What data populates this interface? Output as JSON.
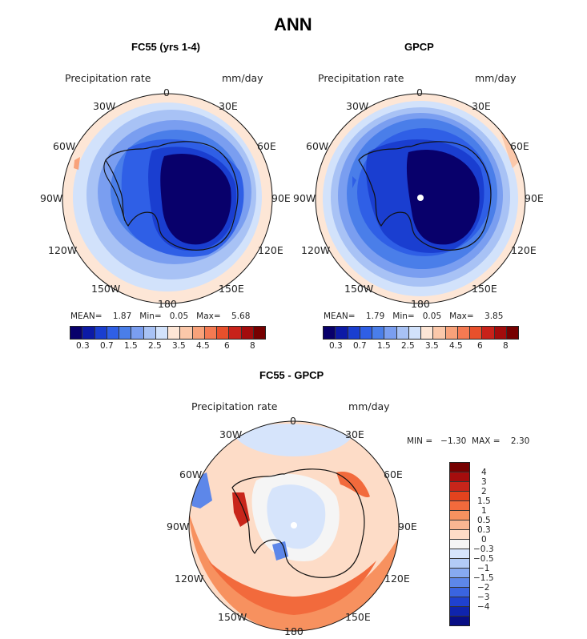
{
  "main_title": "ANN",
  "panels": [
    {
      "title": "FC55 (yrs 1-4)",
      "variable": "Precipitation rate",
      "units": "mm/day",
      "stats": {
        "mean_label": "MEAN=",
        "mean": "1.87",
        "min_label": "Min=",
        "min": "0.05",
        "max_label": "Max=",
        "max": "5.68"
      }
    },
    {
      "title": "GPCP",
      "variable": "Precipitation rate",
      "units": "mm/day",
      "stats": {
        "mean_label": "MEAN=",
        "mean": "1.79",
        "min_label": "Min=",
        "min": "0.05",
        "max_label": "Max=",
        "max": "3.85"
      }
    },
    {
      "title": "FC55 - GPCP",
      "variable": "Precipitation rate",
      "units": "mm/day",
      "stats_line": "MIN =   −1.30  MAX =    2.30"
    }
  ],
  "longitude_labels": [
    "0",
    "30E",
    "60E",
    "90E",
    "120E",
    "150E",
    "180",
    "150W",
    "120W",
    "90W",
    "60W",
    "30W"
  ],
  "colorbar_abs": {
    "colors": [
      "#08006b",
      "#0c1aa6",
      "#1a3ed0",
      "#2f5fe6",
      "#4a7ee9",
      "#7a9ef0",
      "#a8c2f5",
      "#d2e2fb",
      "#fde6d6",
      "#fbc8aa",
      "#f8a27a",
      "#f47a52",
      "#e8502c",
      "#c8221a",
      "#a30c0c",
      "#760000"
    ],
    "tick_labels": [
      "0.3",
      "0.7",
      "1.5",
      "2.5",
      "3.5",
      "4.5",
      "6",
      "8"
    ]
  },
  "colorbar_diff": {
    "colors": [
      "#760000",
      "#a50d0d",
      "#c8251a",
      "#e4431e",
      "#f26a3c",
      "#f7915f",
      "#fab692",
      "#fddcc7",
      "#f5f5f5",
      "#d6e4fb",
      "#b2cbf6",
      "#87aaf0",
      "#5d87e9",
      "#3a64e0",
      "#1f41cf",
      "#0f24ad",
      "#080e85"
    ],
    "tick_labels": [
      "4",
      "3",
      "2",
      "1.5",
      "1",
      "0.5",
      "0.3",
      "0",
      "−0.3",
      "−0.5",
      "−1",
      "−1.5",
      "−2",
      "−3",
      "−4"
    ]
  }
}
